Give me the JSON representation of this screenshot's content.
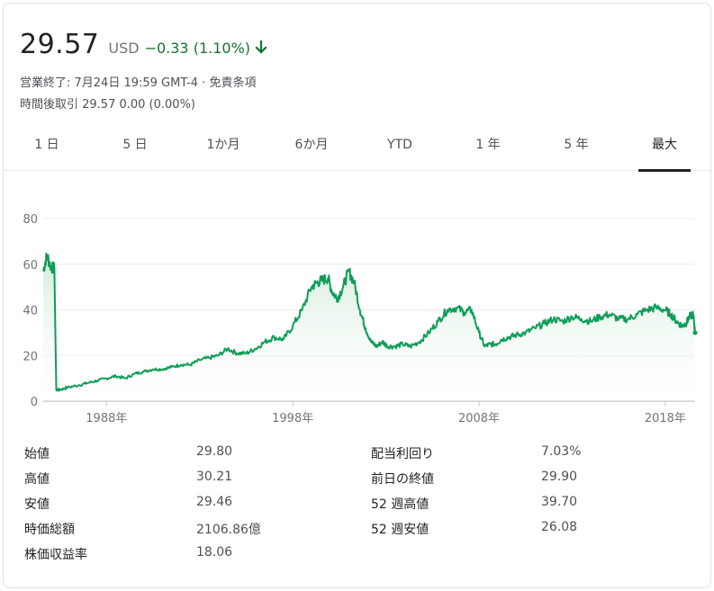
{
  "quote": {
    "price": "29.57",
    "currency": "USD",
    "change": "−0.33 (1.10%)",
    "change_color": "#137333",
    "change_direction_icon": "arrow-down-icon",
    "market_status": "営業終了: 7月24日 19:59 GMT-4 · 免責条項",
    "after_hours": "時間後取引 29.57 0.00 (0.00%)"
  },
  "tabs": [
    {
      "label": "1 日",
      "active": false
    },
    {
      "label": "5 日",
      "active": false
    },
    {
      "label": "1か月",
      "active": false
    },
    {
      "label": "6か月",
      "active": false
    },
    {
      "label": "YTD",
      "active": false
    },
    {
      "label": "1 年",
      "active": false
    },
    {
      "label": "5 年",
      "active": false
    },
    {
      "label": "最大",
      "active": true
    }
  ],
  "chart_data": {
    "type": "area",
    "line_color": "#0f9d58",
    "fill_color": "#e6f4ea",
    "ylim": [
      0,
      80
    ],
    "yticks": [
      0,
      20,
      40,
      60,
      80
    ],
    "ytick_labels": [
      "0",
      "20",
      "40",
      "60",
      "80"
    ],
    "xlim": [
      1984.6,
      2019.6
    ],
    "xticks": [
      1988,
      1998,
      2008,
      2018
    ],
    "xtick_labels": [
      "1988年",
      "1998年",
      "2008年",
      "2018年"
    ],
    "grid": true,
    "series": [
      {
        "x": [
          1984.6,
          1984.8,
          1985.0,
          1985.2,
          1985.3,
          1985.5,
          1985.9,
          1986.5,
          1987.0,
          1987.5,
          1988.0,
          1988.5,
          1989.0,
          1989.5,
          1990.0,
          1990.5,
          1991.0,
          1991.5,
          1992.0,
          1992.5,
          1993.0,
          1993.5,
          1994.0,
          1994.5,
          1995.0,
          1995.5,
          1996.0,
          1996.5,
          1997.0,
          1997.5,
          1998.0,
          1998.5,
          1999.0,
          1999.3,
          1999.6,
          1999.9,
          2000.1,
          2000.4,
          2000.7,
          2001.0,
          2001.3,
          2001.6,
          2001.9,
          2002.2,
          2002.5,
          2002.8,
          2003.1,
          2003.5,
          2003.9,
          2004.3,
          2004.8,
          2005.3,
          2005.8,
          2006.3,
          2006.8,
          2007.2,
          2007.6,
          2008.0,
          2008.3,
          2008.6,
          2008.9,
          2009.2,
          2009.6,
          2010.0,
          2010.5,
          2011.0,
          2011.5,
          2012.0,
          2012.5,
          2013.0,
          2013.5,
          2014.0,
          2014.5,
          2015.0,
          2015.5,
          2016.0,
          2016.5,
          2017.0,
          2017.5,
          2018.0,
          2018.3,
          2018.6,
          2018.9,
          2019.1,
          2019.3,
          2019.5,
          2019.6
        ],
        "y": [
          57,
          64,
          59,
          58,
          5,
          5,
          6,
          7,
          8,
          9,
          10,
          11,
          10,
          12,
          13,
          14,
          14,
          15,
          16,
          16,
          18,
          19,
          20,
          23,
          21,
          21,
          23,
          26,
          28,
          27,
          33,
          40,
          50,
          52,
          53,
          54,
          48,
          45,
          50,
          57,
          52,
          40,
          32,
          26,
          24,
          26,
          24,
          24,
          25,
          24,
          26,
          30,
          35,
          40,
          41,
          39,
          40,
          30,
          24,
          25,
          25,
          27,
          28,
          29,
          30,
          32,
          34,
          36,
          35,
          37,
          36,
          35,
          37,
          38,
          36,
          36,
          38,
          40,
          41,
          40,
          38,
          35,
          33,
          34,
          37,
          38,
          30
        ],
        "values_note_free": true
      }
    ]
  },
  "stats": {
    "left": [
      {
        "label": "始値",
        "value": "29.80"
      },
      {
        "label": "高値",
        "value": "30.21"
      },
      {
        "label": "安値",
        "value": "29.46"
      },
      {
        "label": "時価総額",
        "value": "2106.86億"
      },
      {
        "label": "株価収益率",
        "value": "18.06"
      }
    ],
    "right": [
      {
        "label": "配当利回り",
        "value": "7.03%"
      },
      {
        "label": "前日の終値",
        "value": "29.90"
      },
      {
        "label": "52 週高値",
        "value": "39.70"
      },
      {
        "label": "52 週安値",
        "value": "26.08"
      }
    ]
  }
}
